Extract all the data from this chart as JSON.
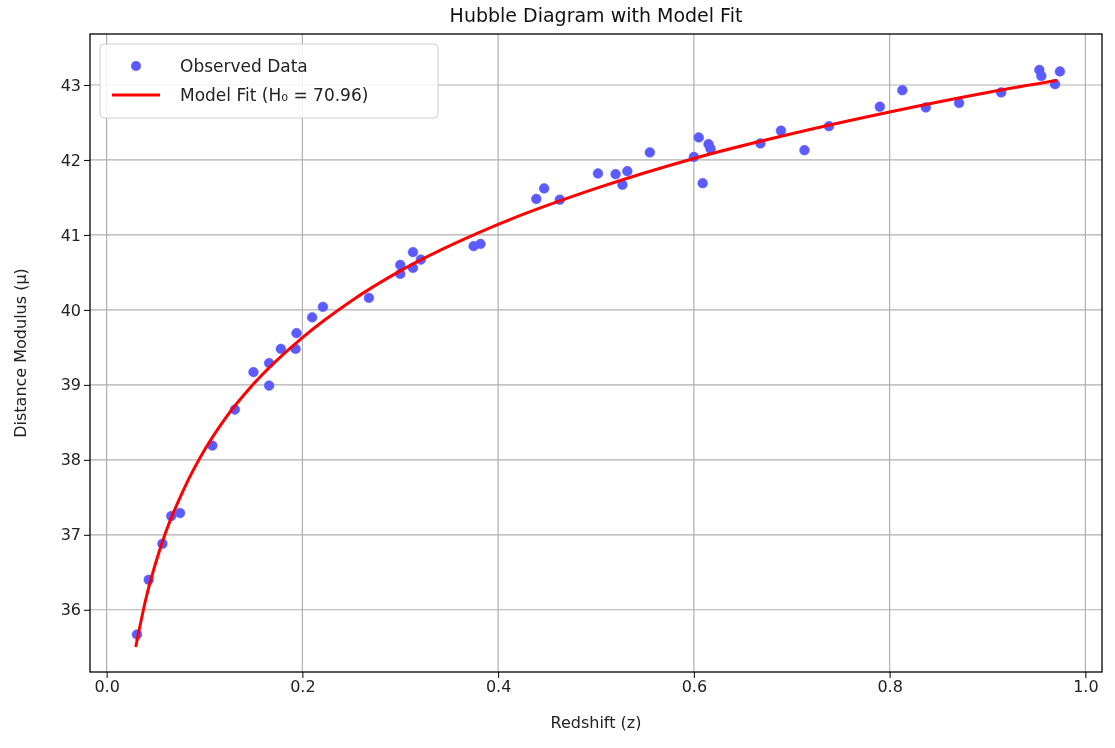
{
  "chart_data": {
    "type": "scatter",
    "title": "Hubble Diagram with Model Fit",
    "xlabel": "Redshift (z)",
    "ylabel": "Distance Modulus (μ)",
    "xlim": [
      -0.017,
      1.017
    ],
    "xticks": [
      {
        "value": 0,
        "label": "0.0"
      },
      {
        "value": 0.2,
        "label": "0.2"
      },
      {
        "value": 0.4,
        "label": "0.4"
      },
      {
        "value": 0.6,
        "label": "0.6"
      },
      {
        "value": 0.8,
        "label": "0.8"
      },
      {
        "value": 1,
        "label": "1.0"
      }
    ],
    "ylim": [
      35.17,
      43.68
    ],
    "yticks": [
      36,
      37,
      38,
      39,
      40,
      41,
      42,
      43
    ],
    "grid": true,
    "legend": "top left",
    "series": [
      {
        "name": "Observed Data",
        "marker": "circle",
        "color": "#5b5bff",
        "x": [
          0.031,
          0.043,
          0.057,
          0.066,
          0.075,
          0.108,
          0.131,
          0.15,
          0.166,
          0.166,
          0.178,
          0.193,
          0.194,
          0.21,
          0.221,
          0.268,
          0.3,
          0.3,
          0.313,
          0.313,
          0.321,
          0.375,
          0.382,
          0.439,
          0.447,
          0.463,
          0.502,
          0.52,
          0.527,
          0.532,
          0.555,
          0.6,
          0.605,
          0.609,
          0.615,
          0.617,
          0.668,
          0.689,
          0.713,
          0.738,
          0.79,
          0.813,
          0.837,
          0.871,
          0.914,
          0.953,
          0.955,
          0.969,
          0.974
        ],
        "values": [
          35.67,
          36.4,
          36.88,
          37.25,
          37.29,
          38.19,
          38.67,
          39.17,
          38.99,
          39.29,
          39.48,
          39.48,
          39.69,
          39.9,
          40.04,
          40.16,
          40.6,
          40.48,
          40.77,
          40.56,
          40.67,
          40.85,
          40.88,
          41.48,
          41.62,
          41.47,
          41.82,
          41.81,
          41.67,
          41.85,
          42.1,
          42.04,
          42.3,
          41.69,
          42.21,
          42.15,
          42.22,
          42.39,
          42.13,
          42.45,
          42.71,
          42.93,
          42.7,
          42.76,
          42.9,
          43.2,
          43.12,
          43.01,
          43.18
        ]
      },
      {
        "name": "Model Fit (H₀ = 70.96)",
        "type": "line",
        "line_style": "solid",
        "color": "#ff0000",
        "x": [
          0.03,
          0.04,
          0.05,
          0.06,
          0.08,
          0.1,
          0.12,
          0.15,
          0.2,
          0.25,
          0.3,
          0.4,
          0.5,
          0.6,
          0.7,
          0.8,
          0.9,
          0.97
        ],
        "values": [
          35.52,
          36.14,
          36.62,
          37.02,
          37.64,
          38.13,
          38.53,
          39.01,
          39.63,
          40.12,
          40.52,
          41.14,
          41.62,
          42.02,
          42.35,
          42.64,
          42.9,
          43.06
        ]
      }
    ]
  }
}
